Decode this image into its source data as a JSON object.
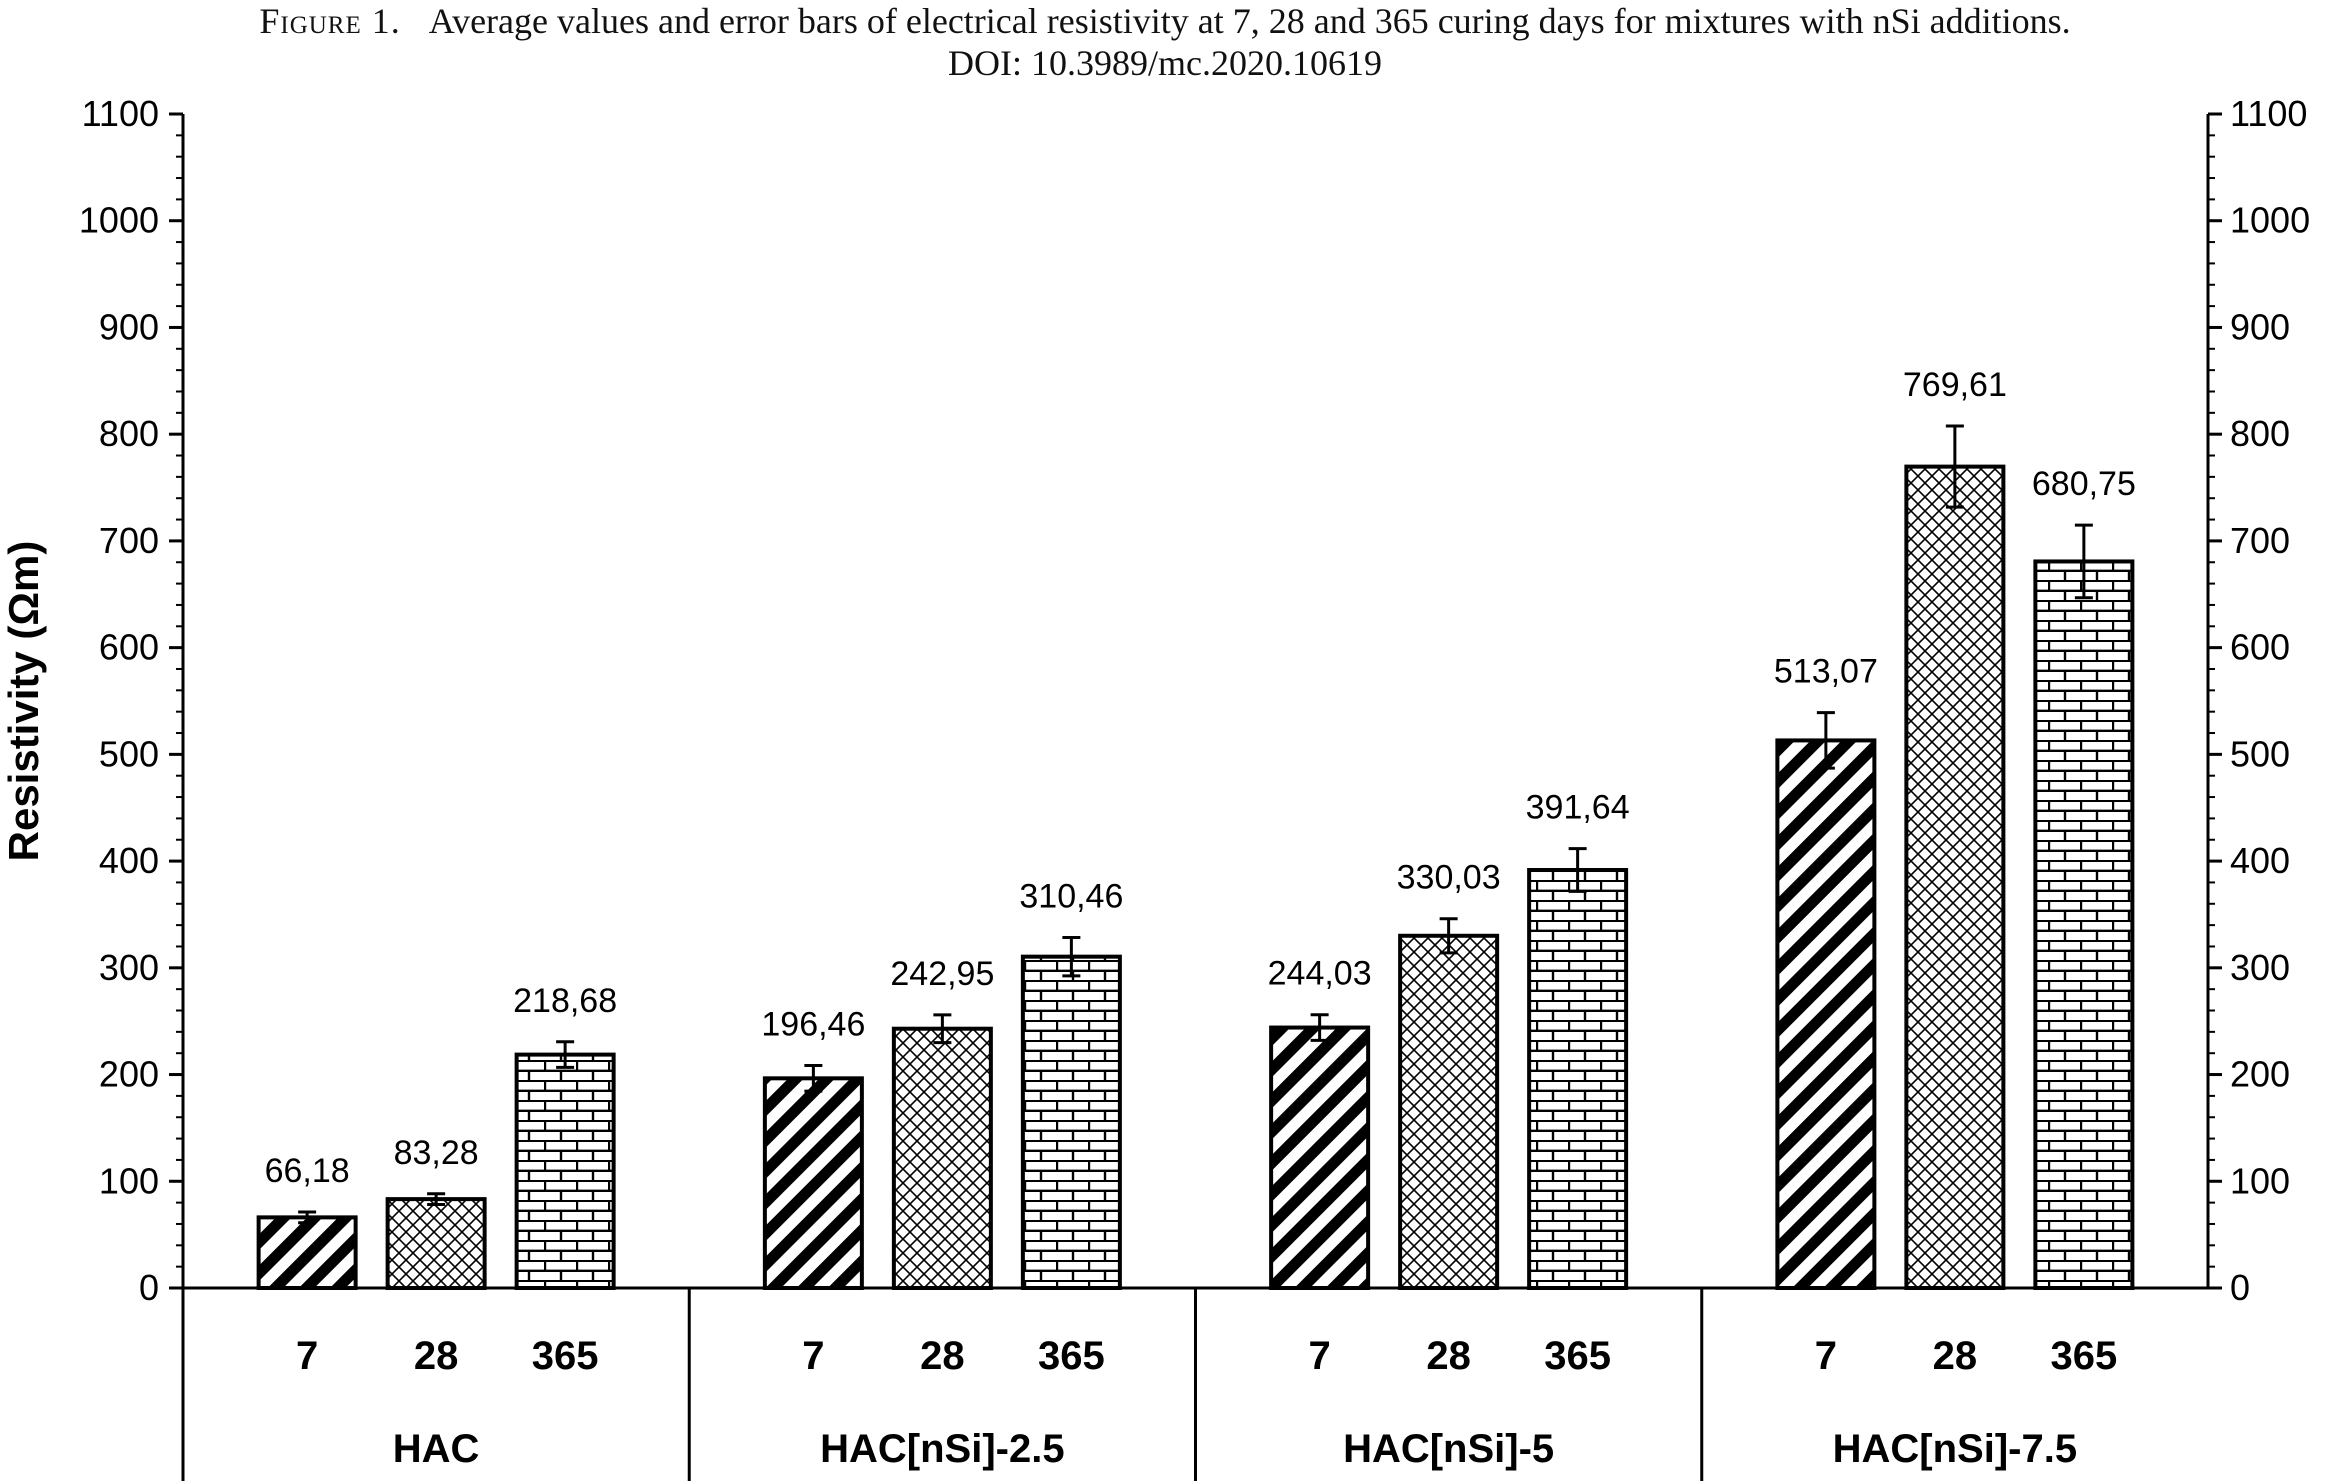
{
  "caption": {
    "label": "Figure 1.",
    "text": "Average values and error bars of electrical resistivity at 7, 28 and 365 curing days for mixtures with nSi additions.",
    "doi": "DOI: 10.3989/mc.2020.10619"
  },
  "chart_data": {
    "type": "bar",
    "ylabel": "Resistivity (Ωm)",
    "ylim": [
      0,
      1100
    ],
    "yticks": [
      0,
      100,
      200,
      300,
      400,
      500,
      600,
      700,
      800,
      900,
      1000,
      1100
    ],
    "secondary_y_axis": true,
    "grid": false,
    "legend": "none",
    "groups": [
      "HAC",
      "HAC[nSi]-2.5",
      "HAC[nSi]-5",
      "HAC[nSi]-7.5"
    ],
    "subcategories": [
      "7",
      "28",
      "365"
    ],
    "series": [
      {
        "values": [
          66.18,
          196.46,
          244.03,
          513.07
        ],
        "labels": [
          "66,18",
          "196,46",
          "244,03",
          "513,07"
        ],
        "errors": [
          5,
          12,
          12,
          26
        ],
        "pattern": "diagonal-stripes"
      },
      {
        "values": [
          83.28,
          242.95,
          330.03,
          769.61
        ],
        "labels": [
          "83,28",
          "242,95",
          "330,03",
          "769,61"
        ],
        "errors": [
          5,
          13,
          16,
          38
        ],
        "pattern": "crosshatch"
      },
      {
        "values": [
          218.68,
          310.46,
          391.64,
          680.75
        ],
        "labels": [
          "218,68",
          "310,46",
          "391,64",
          "680,75"
        ],
        "errors": [
          12,
          18,
          20,
          34
        ],
        "pattern": "brick"
      }
    ]
  }
}
